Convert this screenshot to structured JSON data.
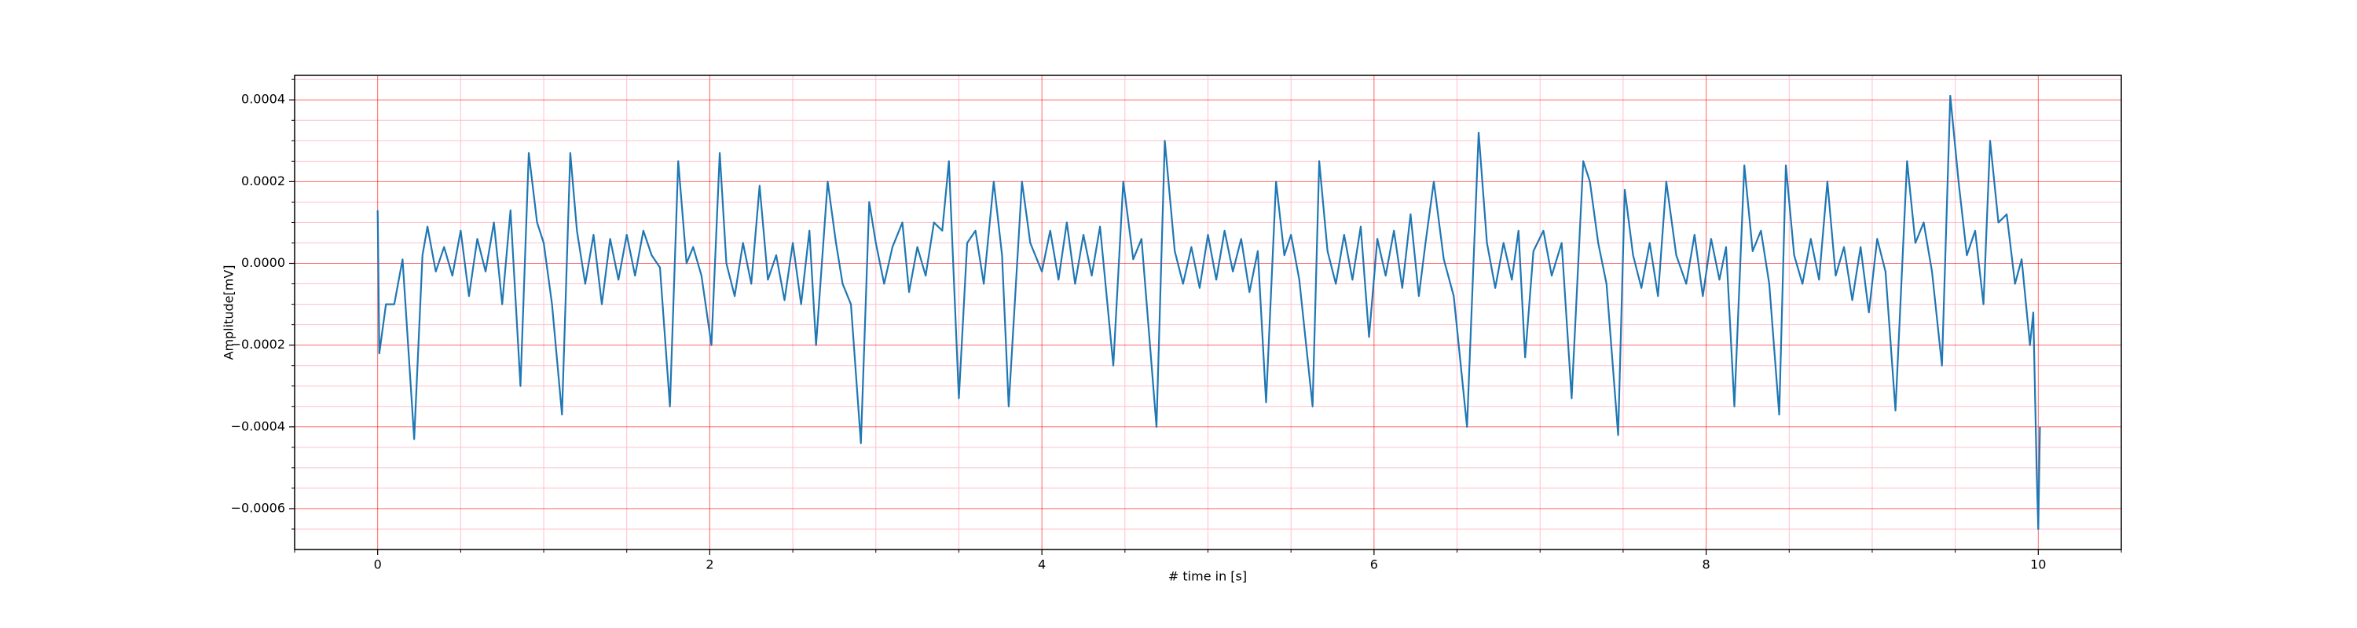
{
  "chart_data": {
    "type": "line",
    "xlabel": "# time in [s]",
    "ylabel": "Amplitude[mV]",
    "color": "#1f77b4",
    "grid": true,
    "grid_color": "#ff0000",
    "minor_grid_color": "#ffc0cb",
    "xlim": [
      -0.5,
      10.5
    ],
    "ylim": [
      -0.0007,
      0.00046
    ],
    "xticks": [
      0,
      2,
      4,
      6,
      8,
      10
    ],
    "xminorticks": [
      -0.5,
      0.5,
      1,
      1.5,
      2.5,
      3,
      3.5,
      4.5,
      5,
      5.5,
      6.5,
      7,
      7.5,
      8.5,
      9,
      9.5,
      10.5
    ],
    "yticks": [
      {
        "value": -0.0006,
        "label": "−0.0006"
      },
      {
        "value": -0.0004,
        "label": "−0.0004"
      },
      {
        "value": -0.0002,
        "label": "−0.0002"
      },
      {
        "value": 0,
        "label": "0.0000"
      },
      {
        "value": 0.0002,
        "label": "0.0002"
      },
      {
        "value": 0.0004,
        "label": "0.0004"
      }
    ],
    "yminorticks": [
      -0.00065,
      -0.00055,
      -0.0005,
      -0.00045,
      -0.00035,
      -0.0003,
      -0.00025,
      -0.00015,
      -0.0001,
      -5e-05,
      5e-05,
      0.0001,
      0.00015,
      0.00025,
      0.0003,
      0.00035,
      0.00045
    ],
    "x": [
      0,
      0.01,
      0.05,
      0.1,
      0.15,
      0.22,
      0.27,
      0.3,
      0.35,
      0.4,
      0.45,
      0.5,
      0.55,
      0.6,
      0.65,
      0.7,
      0.75,
      0.8,
      0.86,
      0.91,
      0.96,
      1.0,
      1.05,
      1.11,
      1.16,
      1.2,
      1.25,
      1.3,
      1.35,
      1.4,
      1.45,
      1.5,
      1.55,
      1.6,
      1.65,
      1.7,
      1.76,
      1.81,
      1.86,
      1.9,
      1.95,
      2.01,
      2.06,
      2.1,
      2.15,
      2.2,
      2.25,
      2.3,
      2.35,
      2.4,
      2.45,
      2.5,
      2.55,
      2.6,
      2.64,
      2.71,
      2.76,
      2.8,
      2.85,
      2.91,
      2.96,
      3.0,
      3.05,
      3.1,
      3.16,
      3.2,
      3.25,
      3.3,
      3.35,
      3.4,
      3.44,
      3.5,
      3.55,
      3.6,
      3.65,
      3.71,
      3.76,
      3.8,
      3.88,
      3.93,
      4.0,
      4.05,
      4.1,
      4.15,
      4.2,
      4.25,
      4.3,
      4.35,
      4.43,
      4.49,
      4.55,
      4.6,
      4.69,
      4.74,
      4.8,
      4.85,
      4.9,
      4.95,
      5.0,
      5.05,
      5.1,
      5.15,
      5.2,
      5.25,
      5.3,
      5.35,
      5.41,
      5.46,
      5.5,
      5.55,
      5.63,
      5.67,
      5.72,
      5.77,
      5.82,
      5.87,
      5.92,
      5.97,
      6.02,
      6.07,
      6.12,
      6.17,
      6.22,
      6.27,
      6.31,
      6.36,
      6.42,
      6.48,
      6.56,
      6.63,
      6.68,
      6.73,
      6.78,
      6.83,
      6.87,
      6.91,
      6.96,
      7.02,
      7.07,
      7.13,
      7.19,
      7.26,
      7.3,
      7.35,
      7.4,
      7.47,
      7.51,
      7.56,
      7.61,
      7.66,
      7.71,
      7.76,
      7.82,
      7.88,
      7.93,
      7.98,
      8.03,
      8.08,
      8.12,
      8.17,
      8.23,
      8.28,
      8.33,
      8.38,
      8.44,
      8.48,
      8.53,
      8.58,
      8.63,
      8.68,
      8.73,
      8.78,
      8.83,
      8.88,
      8.93,
      8.98,
      9.03,
      9.08,
      9.14,
      9.21,
      9.26,
      9.31,
      9.36,
      9.42,
      9.47,
      9.52,
      9.57,
      9.62,
      9.67,
      9.71,
      9.76,
      9.81,
      9.86,
      9.9,
      9.95,
      9.97,
      9.99,
      10.0,
      10.01
    ],
    "values": [
      0.00013,
      -0.00022,
      -0.0001,
      -0.0001,
      1e-05,
      -0.00043,
      2e-05,
      9e-05,
      -2e-05,
      4e-05,
      -3e-05,
      8e-05,
      -8e-05,
      6e-05,
      -2e-05,
      0.0001,
      -0.0001,
      0.00013,
      -0.0003,
      0.00027,
      0.0001,
      5e-05,
      -0.0001,
      -0.00037,
      0.00027,
      8e-05,
      -5e-05,
      7e-05,
      -0.0001,
      6e-05,
      -4e-05,
      7e-05,
      -3e-05,
      8e-05,
      2e-05,
      -1e-05,
      -0.00035,
      0.00025,
      0.0,
      4e-05,
      -3e-05,
      -0.0002,
      0.00027,
      0.0,
      -8e-05,
      5e-05,
      -5e-05,
      0.00019,
      -4e-05,
      2e-05,
      -9e-05,
      5e-05,
      -0.0001,
      8e-05,
      -0.0002,
      0.0002,
      5e-05,
      -5e-05,
      -0.0001,
      -0.00044,
      0.00015,
      5e-05,
      -5e-05,
      4e-05,
      0.0001,
      -7e-05,
      4e-05,
      -3e-05,
      0.0001,
      8e-05,
      0.00025,
      -0.00033,
      5e-05,
      8e-05,
      -5e-05,
      0.0002,
      2e-05,
      -0.00035,
      0.0002,
      5e-05,
      -2e-05,
      8e-05,
      -4e-05,
      0.0001,
      -5e-05,
      7e-05,
      -3e-05,
      9e-05,
      -0.00025,
      0.0002,
      1e-05,
      6e-05,
      -0.0004,
      0.0003,
      3e-05,
      -5e-05,
      4e-05,
      -6e-05,
      7e-05,
      -4e-05,
      8e-05,
      -2e-05,
      6e-05,
      -7e-05,
      3e-05,
      -0.00034,
      0.0002,
      2e-05,
      7e-05,
      -4e-05,
      -0.00035,
      0.00025,
      3e-05,
      -5e-05,
      7e-05,
      -4e-05,
      9e-05,
      -0.00018,
      6e-05,
      -3e-05,
      8e-05,
      -6e-05,
      0.00012,
      -8e-05,
      5e-05,
      0.0002,
      1e-05,
      -8e-05,
      -0.0004,
      0.00032,
      5e-05,
      -6e-05,
      5e-05,
      -4e-05,
      8e-05,
      -0.00023,
      3e-05,
      8e-05,
      -3e-05,
      5e-05,
      -0.00033,
      0.00025,
      0.0002,
      5e-05,
      -5e-05,
      -0.00042,
      0.00018,
      2e-05,
      -6e-05,
      5e-05,
      -8e-05,
      0.0002,
      2e-05,
      -5e-05,
      7e-05,
      -8e-05,
      6e-05,
      -4e-05,
      4e-05,
      -0.00035,
      0.00024,
      3e-05,
      8e-05,
      -5e-05,
      -0.00037,
      0.00024,
      2e-05,
      -5e-05,
      6e-05,
      -4e-05,
      0.0002,
      -3e-05,
      4e-05,
      -9e-05,
      4e-05,
      -0.00012,
      6e-05,
      -2e-05,
      -0.00036,
      0.00025,
      5e-05,
      0.0001,
      -2e-05,
      -0.00025,
      0.00041,
      0.0002,
      2e-05,
      8e-05,
      -0.0001,
      0.0003,
      0.0001,
      0.00012,
      -5e-05,
      1e-05,
      -0.0002,
      -0.00012,
      -0.0005,
      -0.00065,
      -0.0004
    ]
  }
}
